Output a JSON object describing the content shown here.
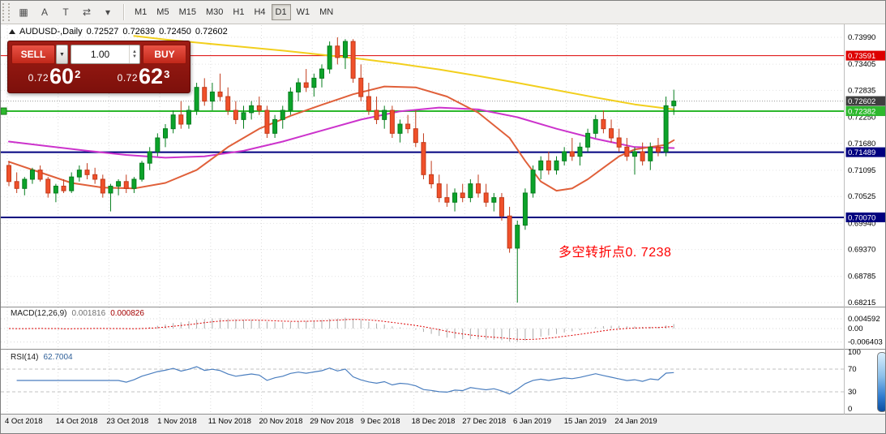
{
  "toolbar": {
    "tools": [
      {
        "name": "chart-grid-tool",
        "glyph": "▦"
      },
      {
        "name": "cursor-tool",
        "glyph": "A"
      },
      {
        "name": "text-tool",
        "glyph": "T"
      },
      {
        "name": "shift-tool",
        "glyph": "⇄"
      },
      {
        "name": "tools-dropdown",
        "glyph": "▾"
      }
    ],
    "timeframes": [
      {
        "label": "M1",
        "active": false
      },
      {
        "label": "M5",
        "active": false
      },
      {
        "label": "M15",
        "active": false
      },
      {
        "label": "M30",
        "active": false
      },
      {
        "label": "H1",
        "active": false
      },
      {
        "label": "H4",
        "active": false
      },
      {
        "label": "D1",
        "active": true
      },
      {
        "label": "W1",
        "active": false
      },
      {
        "label": "MN",
        "active": false
      }
    ]
  },
  "chart_header": {
    "symbol_title": "AUDUSD-,Daily",
    "open": "0.72527",
    "high": "0.72639",
    "low": "0.72450",
    "close": "0.72602"
  },
  "trade_panel": {
    "sell_label": "SELL",
    "buy_label": "BUY",
    "volume": "1.00",
    "sell_price_prefix": "0.72",
    "sell_price_big": "60",
    "sell_price_sup": "2",
    "buy_price_prefix": "0.72",
    "buy_price_big": "62",
    "buy_price_sup": "3"
  },
  "annotation": {
    "text": "多空转折点0. 7238"
  },
  "indicators": {
    "macd": {
      "label": "MACD(12,26,9)",
      "main_value": "0.001816",
      "signal_value": "0.000826",
      "axis_labels": [
        {
          "v": 0.004592,
          "text": "0.004592"
        },
        {
          "v": 0,
          "text": "0.00"
        },
        {
          "v": -0.006403,
          "text": "-0.006403"
        }
      ]
    },
    "rsi": {
      "label": "RSI(14)",
      "value": "62.7004",
      "axis_labels": [
        100,
        70,
        30,
        0
      ],
      "levels": [
        70,
        30
      ]
    }
  },
  "chart_data": {
    "type": "candlestick",
    "symbol": "AUDUSD",
    "timeframe": "Daily",
    "ohlc_current": {
      "open": 0.72527,
      "high": 0.72639,
      "low": 0.7245,
      "close": 0.72602
    },
    "ylim": [
      0.68215,
      0.7399
    ],
    "y_axis_ticks": [
      0.7399,
      0.73405,
      0.72835,
      0.7225,
      0.7168,
      0.71095,
      0.70525,
      0.6994,
      0.6937,
      0.68785,
      0.68215
    ],
    "x_labels": [
      "4 Oct 2018",
      "14 Oct 2018",
      "23 Oct 2018",
      "1 Nov 2018",
      "11 Nov 2018",
      "20 Nov 2018",
      "29 Nov 2018",
      "9 Dec 2018",
      "18 Dec 2018",
      "27 Dec 2018",
      "6 Jan 2019",
      "15 Jan 2019",
      "24 Jan 2019"
    ],
    "colors": {
      "bull": "#0ca32a",
      "bull_stroke": "#067d1d",
      "bear": "#f0502a",
      "bear_stroke": "#c23a1a"
    },
    "candles": [
      [
        0.712,
        0.713,
        0.7075,
        0.7085
      ],
      [
        0.7085,
        0.7105,
        0.706,
        0.707
      ],
      [
        0.707,
        0.7095,
        0.7055,
        0.709
      ],
      [
        0.709,
        0.7115,
        0.708,
        0.711
      ],
      [
        0.711,
        0.712,
        0.7085,
        0.709
      ],
      [
        0.709,
        0.7095,
        0.705,
        0.706
      ],
      [
        0.706,
        0.708,
        0.704,
        0.7075
      ],
      [
        0.7075,
        0.709,
        0.706,
        0.7065
      ],
      [
        0.7065,
        0.7105,
        0.706,
        0.7095
      ],
      [
        0.7095,
        0.712,
        0.7085,
        0.711
      ],
      [
        0.711,
        0.7125,
        0.709,
        0.71
      ],
      [
        0.71,
        0.7115,
        0.708,
        0.709
      ],
      [
        0.709,
        0.71,
        0.705,
        0.706
      ],
      [
        0.706,
        0.708,
        0.702,
        0.7075
      ],
      [
        0.7075,
        0.709,
        0.7055,
        0.7085
      ],
      [
        0.7085,
        0.71,
        0.706,
        0.707
      ],
      [
        0.707,
        0.7095,
        0.706,
        0.709
      ],
      [
        0.709,
        0.713,
        0.7085,
        0.7125
      ],
      [
        0.7125,
        0.716,
        0.711,
        0.715
      ],
      [
        0.715,
        0.719,
        0.714,
        0.718
      ],
      [
        0.718,
        0.721,
        0.716,
        0.72
      ],
      [
        0.72,
        0.724,
        0.719,
        0.723
      ],
      [
        0.723,
        0.726,
        0.72,
        0.721
      ],
      [
        0.721,
        0.725,
        0.72,
        0.724
      ],
      [
        0.724,
        0.73,
        0.723,
        0.729
      ],
      [
        0.729,
        0.731,
        0.725,
        0.726
      ],
      [
        0.726,
        0.73,
        0.724,
        0.728
      ],
      [
        0.728,
        0.732,
        0.726,
        0.727
      ],
      [
        0.727,
        0.729,
        0.723,
        0.724
      ],
      [
        0.724,
        0.726,
        0.721,
        0.722
      ],
      [
        0.722,
        0.725,
        0.72,
        0.7235
      ],
      [
        0.7235,
        0.726,
        0.722,
        0.725
      ],
      [
        0.725,
        0.727,
        0.723,
        0.724
      ],
      [
        0.724,
        0.725,
        0.718,
        0.719
      ],
      [
        0.719,
        0.723,
        0.718,
        0.722
      ],
      [
        0.722,
        0.725,
        0.72,
        0.724
      ],
      [
        0.724,
        0.729,
        0.723,
        0.728
      ],
      [
        0.728,
        0.731,
        0.726,
        0.73
      ],
      [
        0.73,
        0.733,
        0.728,
        0.729
      ],
      [
        0.729,
        0.732,
        0.727,
        0.731
      ],
      [
        0.731,
        0.734,
        0.729,
        0.733
      ],
      [
        0.733,
        0.739,
        0.732,
        0.738
      ],
      [
        0.738,
        0.7399,
        0.734,
        0.7355
      ],
      [
        0.7355,
        0.7395,
        0.733,
        0.739
      ],
      [
        0.739,
        0.7395,
        0.73,
        0.731
      ],
      [
        0.731,
        0.734,
        0.726,
        0.727
      ],
      [
        0.727,
        0.73,
        0.723,
        0.724
      ],
      [
        0.724,
        0.727,
        0.721,
        0.722
      ],
      [
        0.722,
        0.725,
        0.72,
        0.724
      ],
      [
        0.724,
        0.725,
        0.718,
        0.719
      ],
      [
        0.719,
        0.722,
        0.717,
        0.721
      ],
      [
        0.721,
        0.723,
        0.719,
        0.72
      ],
      [
        0.72,
        0.724,
        0.716,
        0.717
      ],
      [
        0.717,
        0.719,
        0.709,
        0.71
      ],
      [
        0.71,
        0.713,
        0.707,
        0.708
      ],
      [
        0.708,
        0.71,
        0.704,
        0.705
      ],
      [
        0.705,
        0.708,
        0.703,
        0.704
      ],
      [
        0.704,
        0.707,
        0.702,
        0.706
      ],
      [
        0.706,
        0.708,
        0.704,
        0.705
      ],
      [
        0.705,
        0.709,
        0.704,
        0.708
      ],
      [
        0.708,
        0.71,
        0.705,
        0.706
      ],
      [
        0.706,
        0.708,
        0.703,
        0.704
      ],
      [
        0.704,
        0.706,
        0.702,
        0.705
      ],
      [
        0.705,
        0.706,
        0.7,
        0.701
      ],
      [
        0.701,
        0.703,
        0.693,
        0.694
      ],
      [
        0.694,
        0.7,
        0.68215,
        0.699
      ],
      [
        0.699,
        0.707,
        0.698,
        0.706
      ],
      [
        0.706,
        0.712,
        0.705,
        0.711
      ],
      [
        0.711,
        0.714,
        0.709,
        0.713
      ],
      [
        0.713,
        0.715,
        0.71,
        0.711
      ],
      [
        0.711,
        0.714,
        0.71,
        0.713
      ],
      [
        0.713,
        0.716,
        0.712,
        0.715
      ],
      [
        0.715,
        0.718,
        0.713,
        0.714
      ],
      [
        0.714,
        0.717,
        0.712,
        0.716
      ],
      [
        0.716,
        0.72,
        0.715,
        0.719
      ],
      [
        0.719,
        0.723,
        0.718,
        0.722
      ],
      [
        0.722,
        0.724,
        0.719,
        0.72
      ],
      [
        0.72,
        0.722,
        0.717,
        0.718
      ],
      [
        0.718,
        0.72,
        0.715,
        0.716
      ],
      [
        0.716,
        0.718,
        0.713,
        0.714
      ],
      [
        0.714,
        0.716,
        0.71,
        0.715
      ],
      [
        0.715,
        0.717,
        0.712,
        0.713
      ],
      [
        0.713,
        0.717,
        0.711,
        0.716
      ],
      [
        0.716,
        0.718,
        0.714,
        0.715
      ],
      [
        0.715,
        0.727,
        0.714,
        0.725
      ],
      [
        0.725,
        0.7285,
        0.723,
        0.72602
      ]
    ],
    "horizontal_lines": [
      {
        "price": 0.73591,
        "color": "#dd0000",
        "label": "0.73591",
        "width": 1
      },
      {
        "price": 0.72382,
        "color": "#2db82d",
        "label": "0.72382",
        "width": 2
      },
      {
        "price": 0.71489,
        "color": "#00007f",
        "label": "0.71489",
        "width": 2
      },
      {
        "price": 0.7007,
        "color": "#00007f",
        "label": "0.70070",
        "width": 2
      }
    ],
    "current_price_line": {
      "price": 0.72602,
      "label": "0.72602",
      "badge_color": "#3f3f3f"
    },
    "overlays": [
      {
        "name": "yellow-trendline-ma",
        "color": "#f2cf1d",
        "width": 2,
        "points": [
          [
            16,
            0.7402
          ],
          [
            20,
            0.7394
          ],
          [
            25,
            0.7386
          ],
          [
            30,
            0.7378
          ],
          [
            35,
            0.737
          ],
          [
            40,
            0.7361
          ],
          [
            45,
            0.7352
          ],
          [
            50,
            0.7341
          ],
          [
            55,
            0.7329
          ],
          [
            60,
            0.7315
          ],
          [
            65,
            0.73
          ],
          [
            70,
            0.7284
          ],
          [
            75,
            0.7268
          ],
          [
            80,
            0.7253
          ],
          [
            85,
            0.7242
          ]
        ]
      },
      {
        "name": "magenta-slow-ma",
        "color": "#cc33cc",
        "width": 2,
        "points": [
          [
            0,
            0.7172
          ],
          [
            5,
            0.7162
          ],
          [
            10,
            0.7152
          ],
          [
            15,
            0.7143
          ],
          [
            20,
            0.7137
          ],
          [
            25,
            0.714
          ],
          [
            30,
            0.7152
          ],
          [
            35,
            0.7172
          ],
          [
            40,
            0.7196
          ],
          [
            45,
            0.722
          ],
          [
            50,
            0.7238
          ],
          [
            55,
            0.7246
          ],
          [
            60,
            0.7242
          ],
          [
            65,
            0.7225
          ],
          [
            70,
            0.72
          ],
          [
            75,
            0.7178
          ],
          [
            80,
            0.716
          ],
          [
            85,
            0.7158
          ]
        ]
      },
      {
        "name": "orange-fast-ma",
        "color": "#e0603a",
        "width": 2,
        "points": [
          [
            0,
            0.7128
          ],
          [
            4,
            0.7105
          ],
          [
            8,
            0.7082
          ],
          [
            12,
            0.7072
          ],
          [
            16,
            0.707
          ],
          [
            20,
            0.7082
          ],
          [
            24,
            0.711
          ],
          [
            28,
            0.716
          ],
          [
            32,
            0.72
          ],
          [
            36,
            0.7228
          ],
          [
            40,
            0.7252
          ],
          [
            44,
            0.7275
          ],
          [
            48,
            0.7292
          ],
          [
            52,
            0.729
          ],
          [
            56,
            0.727
          ],
          [
            60,
            0.7235
          ],
          [
            64,
            0.718
          ],
          [
            66,
            0.713
          ],
          [
            68,
            0.7085
          ],
          [
            70,
            0.7065
          ],
          [
            72,
            0.707
          ],
          [
            74,
            0.709
          ],
          [
            76,
            0.7115
          ],
          [
            78,
            0.714
          ],
          [
            80,
            0.7155
          ],
          [
            82,
            0.716
          ],
          [
            84,
            0.7165
          ],
          [
            85,
            0.7175
          ]
        ]
      }
    ]
  }
}
